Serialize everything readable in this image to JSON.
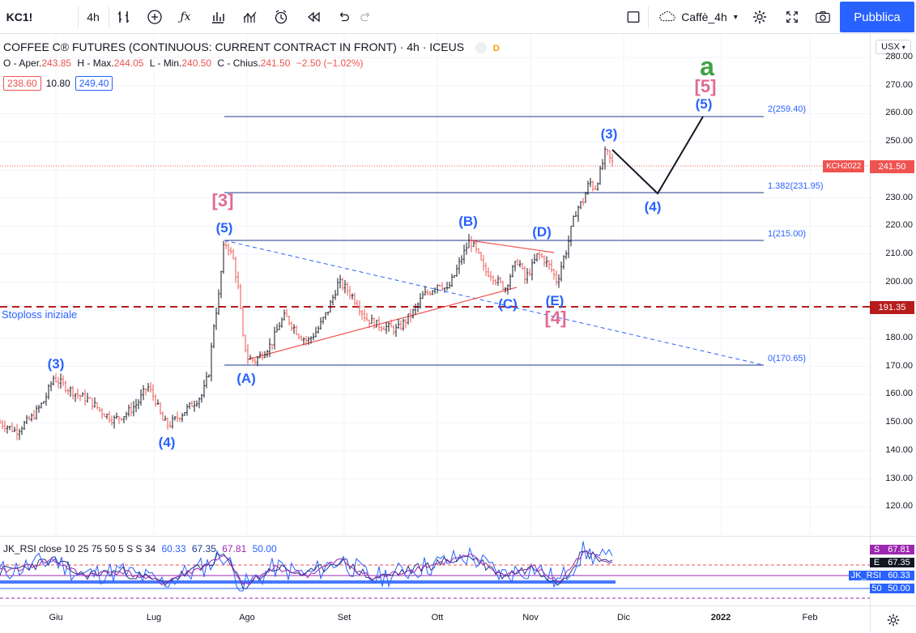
{
  "toolbar": {
    "symbol": "KC1!",
    "interval": "4h",
    "layout_name": "Caffè_4h",
    "publish_label": "Pubblica"
  },
  "legend": {
    "title": "COFFEE C® FUTURES (CONTINUOUS: CURRENT CONTRACT IN FRONT) · 4h · ICEUS",
    "badge": "D",
    "open_label": "O - Aper.",
    "open": "243.85",
    "high_label": "H - Max.",
    "high": "244.05",
    "low_label": "L - Min.",
    "low": "240.50",
    "close_label": "C - Chius.",
    "close": "241.50",
    "change": "−2.50 (−1.02%)",
    "box_left": "238.60",
    "box_mid": "10.80",
    "box_right": "249.40"
  },
  "price_axis": {
    "currency": "USX",
    "ticks": [
      "280.00",
      "270.00",
      "260.00",
      "250.00",
      "240.00",
      "230.00",
      "220.00",
      "210.00",
      "200.00",
      "190.00",
      "180.00",
      "170.00",
      "160.00",
      "150.00",
      "140.00",
      "130.00",
      "120.00"
    ],
    "current_price": "241.50",
    "stoploss_price": "191.35",
    "contract": "KCH2022"
  },
  "time_axis": {
    "labels": [
      "Giu",
      "Lug",
      "Ago",
      "Set",
      "Ott",
      "Nov",
      "Dic",
      "2022",
      "Feb"
    ]
  },
  "annotations": {
    "stoploss": "Stoploss iniziale",
    "fib_2": "2(259.40)",
    "fib_1382": "1.382(231.95)",
    "fib_1": "1(215.00)",
    "fib_0": "0(170.65)",
    "waves": {
      "w3_early": "(3)",
      "w4_early": "(4)",
      "w5": "(5)",
      "big3": "[3]",
      "A": "(A)",
      "B": "(B)",
      "C": "(C)",
      "D": "(D)",
      "E": "(E)",
      "big4": "[4]",
      "w3": "(3)",
      "w4": "(4)",
      "w5_target": "(5)",
      "big5": "[5]",
      "a": "a"
    }
  },
  "rsi": {
    "label": "JK_RSI close 10 25 75 50 5 S S 34",
    "v1": "60.33",
    "v2": "67.35",
    "v3": "67.81",
    "v4": "50.00",
    "tags": [
      {
        "key": "S",
        "value": "67.81",
        "color": "#9c27b0"
      },
      {
        "key": "E",
        "value": "67.35",
        "color": "#131722"
      },
      {
        "key": "JK_RSI",
        "value": "60.33",
        "color": "#2962ff"
      },
      {
        "key": "50",
        "value": "50.00",
        "color": "#2962ff"
      }
    ]
  },
  "colors": {
    "accent": "#2962ff",
    "down": "#ef5350",
    "stoploss": "#b71c1c",
    "wave_pink": "#e06b94",
    "wave_green": "#43a047"
  },
  "chart_data": {
    "type": "line",
    "ylim": [
      115,
      283
    ],
    "price_path": [
      [
        0,
        150
      ],
      [
        20,
        147
      ],
      [
        40,
        152
      ],
      [
        55,
        158
      ],
      [
        66,
        166
      ],
      [
        80,
        163
      ],
      [
        95,
        160
      ],
      [
        110,
        158
      ],
      [
        125,
        154
      ],
      [
        140,
        151
      ],
      [
        155,
        153
      ],
      [
        170,
        157
      ],
      [
        182,
        163
      ],
      [
        192,
        158
      ],
      [
        200,
        151
      ],
      [
        208,
        149
      ],
      [
        220,
        152
      ],
      [
        235,
        156
      ],
      [
        250,
        160
      ],
      [
        258,
        168
      ],
      [
        264,
        185
      ],
      [
        270,
        195
      ],
      [
        276,
        212
      ],
      [
        280,
        214
      ],
      [
        288,
        208
      ],
      [
        295,
        196
      ],
      [
        300,
        180
      ],
      [
        306,
        173
      ],
      [
        315,
        172
      ],
      [
        325,
        175
      ],
      [
        335,
        178
      ],
      [
        345,
        185
      ],
      [
        352,
        188
      ],
      [
        360,
        185
      ],
      [
        370,
        181
      ],
      [
        380,
        179
      ],
      [
        392,
        183
      ],
      [
        405,
        190
      ],
      [
        418,
        200
      ],
      [
        430,
        197
      ],
      [
        440,
        193
      ],
      [
        452,
        187
      ],
      [
        465,
        185
      ],
      [
        478,
        184
      ],
      [
        490,
        183
      ],
      [
        500,
        186
      ],
      [
        512,
        190
      ],
      [
        522,
        195
      ],
      [
        532,
        197
      ],
      [
        542,
        200
      ],
      [
        552,
        197
      ],
      [
        562,
        203
      ],
      [
        572,
        210
      ],
      [
        580,
        215
      ],
      [
        590,
        210
      ],
      [
        598,
        204
      ],
      [
        606,
        203
      ],
      [
        615,
        200
      ],
      [
        624,
        198
      ],
      [
        632,
        204
      ],
      [
        640,
        208
      ],
      [
        648,
        201
      ],
      [
        656,
        205
      ],
      [
        664,
        210
      ],
      [
        672,
        208
      ],
      [
        680,
        205
      ],
      [
        688,
        200
      ],
      [
        694,
        207
      ],
      [
        700,
        212
      ],
      [
        706,
        220
      ],
      [
        712,
        226
      ],
      [
        720,
        229
      ],
      [
        728,
        236
      ],
      [
        734,
        233
      ],
      [
        742,
        240
      ],
      [
        748,
        247
      ],
      [
        752,
        244
      ],
      [
        758,
        242
      ]
    ],
    "rsi_path": [
      [
        0,
        50
      ],
      [
        30,
        55
      ],
      [
        66,
        65
      ],
      [
        100,
        45
      ],
      [
        150,
        50
      ],
      [
        200,
        35
      ],
      [
        250,
        55
      ],
      [
        276,
        72
      ],
      [
        300,
        30
      ],
      [
        340,
        55
      ],
      [
        380,
        45
      ],
      [
        420,
        65
      ],
      [
        460,
        40
      ],
      [
        500,
        50
      ],
      [
        540,
        60
      ],
      [
        580,
        70
      ],
      [
        620,
        45
      ],
      [
        660,
        55
      ],
      [
        690,
        35
      ],
      [
        720,
        75
      ],
      [
        758,
        62
      ]
    ]
  }
}
